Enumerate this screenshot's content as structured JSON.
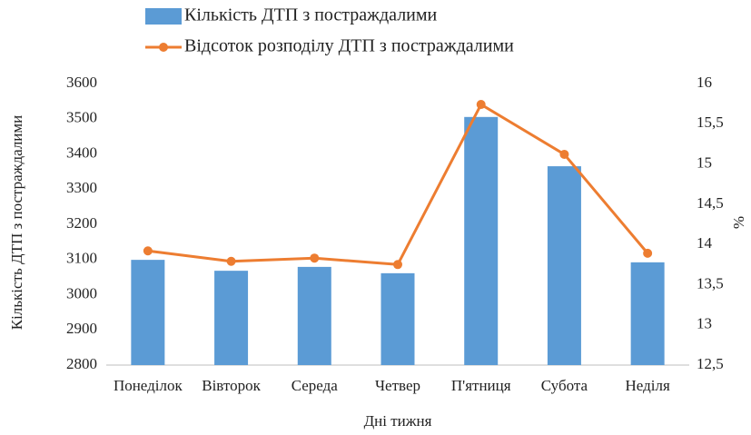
{
  "chart_data": {
    "type": "bar-line",
    "categories": [
      "Понеділок",
      "Вівторок",
      "Середа",
      "Четвер",
      "П'ятниця",
      "Субота",
      "Неділя"
    ],
    "series": [
      {
        "name": "Кількість ДТП з постраждалими",
        "type": "bar",
        "color": "#5b9bd5",
        "values": [
          3099,
          3068,
          3079,
          3061,
          3505,
          3365,
          3092
        ]
      },
      {
        "name": "Відсоток розподілу ДТП з постраждалими",
        "type": "line",
        "axis": "y2",
        "color": "#ed7d31",
        "values": [
          13.92,
          13.79,
          13.83,
          13.75,
          15.74,
          15.12,
          13.89
        ]
      }
    ],
    "xlabel": "Дні тижня",
    "ylabel": "Кількість ДТП з постраждалими",
    "y2label": "%",
    "ylim": [
      2800,
      3600
    ],
    "yticks": [
      2800,
      2900,
      3000,
      3100,
      3200,
      3300,
      3400,
      3500,
      3600
    ],
    "y2lim": [
      12.5,
      16
    ],
    "y2ticks": [
      {
        "value": 12.5,
        "label": "12,5"
      },
      13,
      {
        "value": 13.5,
        "label": "13,5"
      },
      14,
      {
        "value": 14.5,
        "label": "14,5"
      },
      15,
      {
        "value": 15.5,
        "label": "15,5"
      },
      16
    ],
    "legend": "top",
    "grid": false
  }
}
